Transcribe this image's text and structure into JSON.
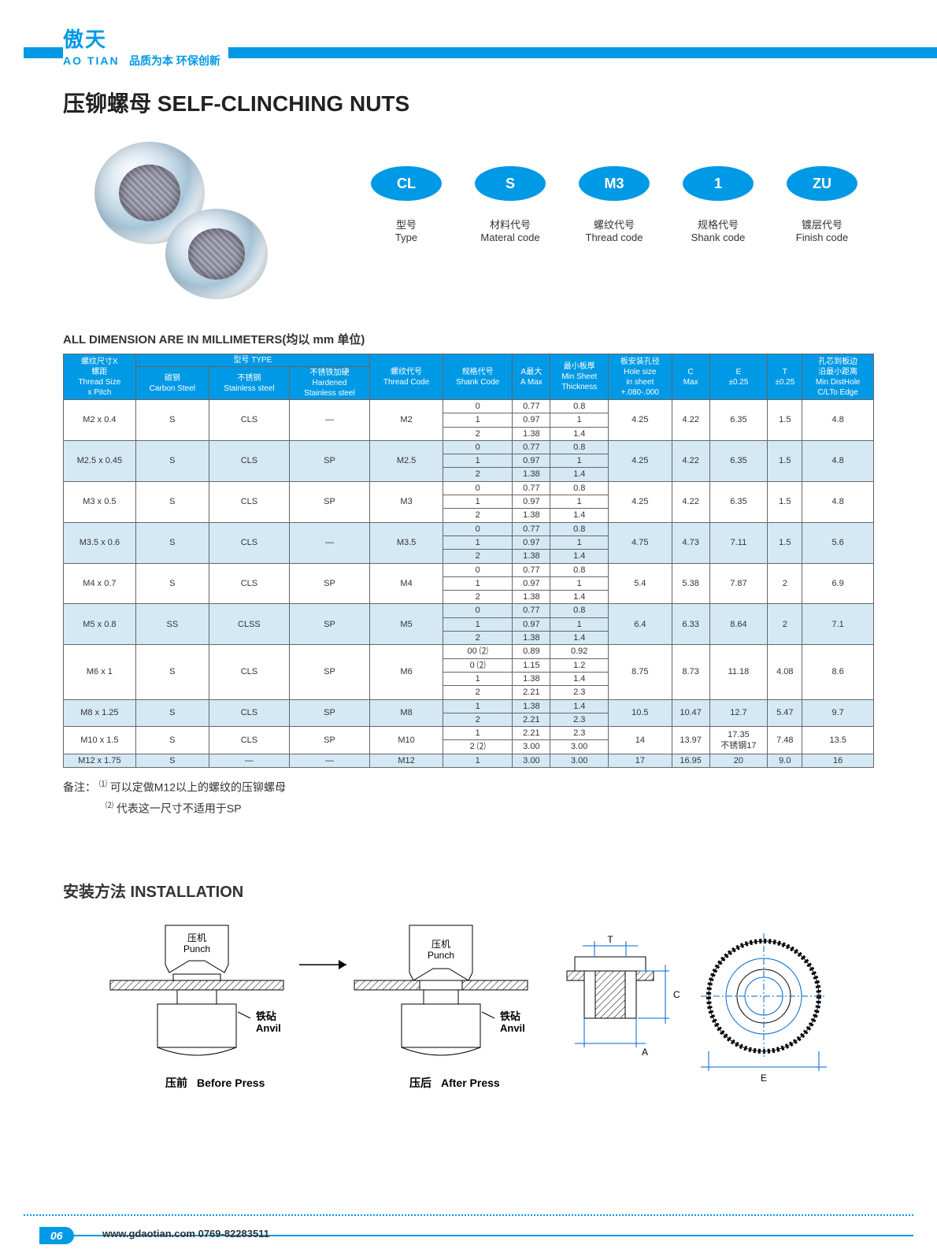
{
  "logo": {
    "cn": "傲天",
    "en": "AO TIAN",
    "tag": "品质为本 环保创新"
  },
  "title": "压铆螺母 SELF-CLINCHING NUTS",
  "codes": [
    {
      "pill": "CL",
      "cn": "型号",
      "en": "Type"
    },
    {
      "pill": "S",
      "cn": "材料代号",
      "en": "Materal code"
    },
    {
      "pill": "M3",
      "cn": "螺纹代号",
      "en": "Thread code"
    },
    {
      "pill": "1",
      "cn": "规格代号",
      "en": "Shank code"
    },
    {
      "pill": "ZU",
      "cn": "镀层代号",
      "en": "Finish code"
    }
  ],
  "dim_title": "ALL DIMENSION ARE IN MILLIMETERS(均以 mm 单位)",
  "table": {
    "header_bg": "#0099e5",
    "header_fg": "#ffffff",
    "row_odd_bg": "#d5e9f5",
    "row_even_bg": "#ffffff",
    "border": "#666666",
    "head": {
      "threadsize": "螺纹尺寸X\n螺距\nThread Size\nx Pitch",
      "type": "型号 TYPE",
      "carbon": "碳钢\nCarbon Steel",
      "stainless": "不锈钢\nStainless steel",
      "hardened": "不锈铁加硬\nHardened\nStainless steel",
      "threadcode": "螺纹代号\nThread Code",
      "shankcode": "规格代号\nShank Code",
      "amax": "A最大\nA Max",
      "minsheet": "最小板厚\nMin Sheet\nThickness",
      "holesize": "板安装孔径\nHole size\nin sheet\n+.080-.000",
      "cmax": "C\nMax",
      "e": "E\n±0.25",
      "t": "T\n±0.25",
      "mindist": "孔芯到板边\n沿最小距离\nMin DistHole\nC/LTo Edge"
    },
    "groups": [
      {
        "odd": false,
        "size": "M2 x 0.4",
        "cs": "S",
        "ss": "CLS",
        "hs": "—",
        "tc": "M2",
        "rows": [
          [
            "0",
            "0.77",
            "0.8"
          ],
          [
            "1",
            "0.97",
            "1"
          ],
          [
            "2",
            "1.38",
            "1.4"
          ]
        ],
        "hole": "4.25",
        "cmax": "4.22",
        "e": "6.35",
        "t": "1.5",
        "md": "4.8"
      },
      {
        "odd": true,
        "size": "M2.5 x 0.45",
        "cs": "S",
        "ss": "CLS",
        "hs": "SP",
        "tc": "M2.5",
        "rows": [
          [
            "0",
            "0.77",
            "0.8"
          ],
          [
            "1",
            "0.97",
            "1"
          ],
          [
            "2",
            "1.38",
            "1.4"
          ]
        ],
        "hole": "4.25",
        "cmax": "4.22",
        "e": "6.35",
        "t": "1.5",
        "md": "4.8"
      },
      {
        "odd": false,
        "size": "M3 x 0.5",
        "cs": "S",
        "ss": "CLS",
        "hs": "SP",
        "tc": "M3",
        "rows": [
          [
            "0",
            "0.77",
            "0.8"
          ],
          [
            "1",
            "0.97",
            "1"
          ],
          [
            "2",
            "1.38",
            "1.4"
          ]
        ],
        "hole": "4.25",
        "cmax": "4.22",
        "e": "6.35",
        "t": "1.5",
        "md": "4.8"
      },
      {
        "odd": true,
        "size": "M3.5 x 0.6",
        "cs": "S",
        "ss": "CLS",
        "hs": "—",
        "tc": "M3.5",
        "rows": [
          [
            "0",
            "0.77",
            "0.8"
          ],
          [
            "1",
            "0.97",
            "1"
          ],
          [
            "2",
            "1.38",
            "1.4"
          ]
        ],
        "hole": "4.75",
        "cmax": "4.73",
        "e": "7.11",
        "t": "1.5",
        "md": "5.6"
      },
      {
        "odd": false,
        "size": "M4 x 0.7",
        "cs": "S",
        "ss": "CLS",
        "hs": "SP",
        "tc": "M4",
        "rows": [
          [
            "0",
            "0.77",
            "0.8"
          ],
          [
            "1",
            "0.97",
            "1"
          ],
          [
            "2",
            "1.38",
            "1.4"
          ]
        ],
        "hole": "5.4",
        "cmax": "5.38",
        "e": "7.87",
        "t": "2",
        "md": "6.9"
      },
      {
        "odd": true,
        "size": "M5 x 0.8",
        "cs": "SS",
        "ss": "CLSS",
        "hs": "SP",
        "tc": "M5",
        "rows": [
          [
            "0",
            "0.77",
            "0.8"
          ],
          [
            "1",
            "0.97",
            "1"
          ],
          [
            "2",
            "1.38",
            "1.4"
          ]
        ],
        "hole": "6.4",
        "cmax": "6.33",
        "e": "8.64",
        "t": "2",
        "md": "7.1"
      },
      {
        "odd": false,
        "size": "M6 x 1",
        "cs": "S",
        "ss": "CLS",
        "hs": "SP",
        "tc": "M6",
        "rows": [
          [
            "00 ⑵",
            "0.89",
            "0.92"
          ],
          [
            "0 ⑵",
            "1.15",
            "1.2"
          ],
          [
            "1",
            "1.38",
            "1.4"
          ],
          [
            "2",
            "2.21",
            "2.3"
          ]
        ],
        "hole": "8.75",
        "cmax": "8.73",
        "e": "11.18",
        "t": "4.08",
        "md": "8.6"
      },
      {
        "odd": true,
        "size": "M8 x 1.25",
        "cs": "S",
        "ss": "CLS",
        "hs": "SP",
        "tc": "M8",
        "rows": [
          [
            "1",
            "1.38",
            "1.4"
          ],
          [
            "2",
            "2.21",
            "2.3"
          ]
        ],
        "hole": "10.5",
        "cmax": "10.47",
        "e": "12.7",
        "t": "5.47",
        "md": "9.7"
      },
      {
        "odd": false,
        "size": "M10 x 1.5",
        "cs": "S",
        "ss": "CLS",
        "hs": "SP",
        "tc": "M10",
        "rows": [
          [
            "1",
            "2.21",
            "2.3"
          ],
          [
            "2 ⑵",
            "3.00",
            "3.00"
          ]
        ],
        "hole": "14",
        "cmax": "13.97",
        "e": "17.35\n不锈钢17",
        "t": "7.48",
        "md": "13.5"
      },
      {
        "odd": true,
        "size": "M12 x 1.75",
        "cs": "S",
        "ss": "—",
        "hs": "—",
        "tc": "M12",
        "rows": [
          [
            "1",
            "3.00",
            "3.00"
          ]
        ],
        "hole": "17",
        "cmax": "16.95",
        "e": "20",
        "t": "9.0",
        "md": "16"
      }
    ]
  },
  "notes": {
    "prefix": "备注：",
    "n1": "可以定做M12以上的螺纹的压铆螺母",
    "n2": "代表这一尺寸不适用于SP"
  },
  "install_title": "安装方法  INSTALLATION",
  "install": {
    "punch_cn": "压机",
    "punch_en": "Punch",
    "anvil_cn": "铁砧",
    "anvil_en": "Anvil",
    "before_cn": "压前",
    "before_en": "Before Press",
    "after_cn": "压后",
    "after_en": "After Press",
    "dim_t": "T",
    "dim_c": "C",
    "dim_a": "A",
    "dim_e": "E"
  },
  "footer": {
    "page": "06",
    "url": "www.gdaotian.com  0769-82283511"
  }
}
